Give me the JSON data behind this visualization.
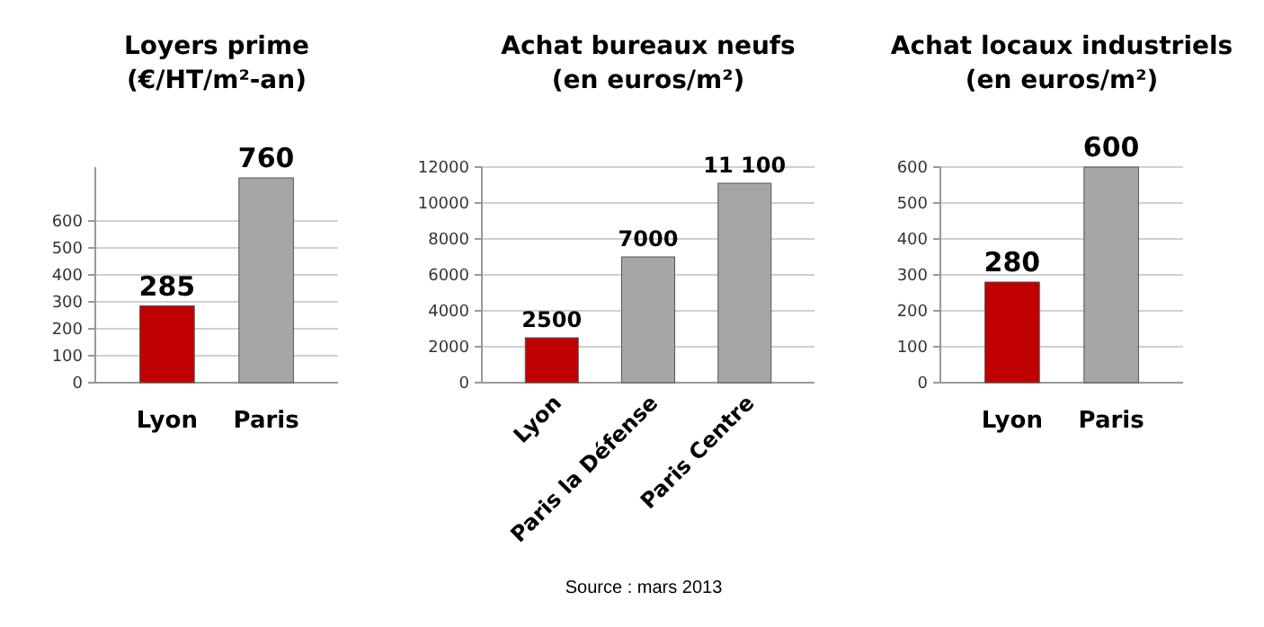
{
  "chart_data": [
    {
      "type": "bar",
      "title": "Loyers prime\n(€/HT/m²-an)",
      "categories": [
        "Lyon",
        "Paris"
      ],
      "values": [
        285,
        760
      ],
      "colors": [
        "#c00000",
        "#a6a6a6"
      ],
      "value_labels": [
        "285",
        "760"
      ],
      "ylim": [
        0,
        800
      ],
      "yticks": [
        0,
        100,
        200,
        300,
        400,
        500,
        600
      ],
      "grid": "y"
    },
    {
      "type": "bar",
      "title": "Achat bureaux neufs\n(en euros/m²)",
      "categories": [
        "Lyon",
        "Paris la Défense",
        "Paris Centre"
      ],
      "values": [
        2500,
        7000,
        11100
      ],
      "colors": [
        "#c00000",
        "#a6a6a6",
        "#a6a6a6"
      ],
      "value_labels": [
        "2500",
        "7000",
        "11 100"
      ],
      "ylim": [
        0,
        12000
      ],
      "yticks": [
        0,
        2000,
        4000,
        6000,
        8000,
        10000,
        12000
      ],
      "grid": "y",
      "annotations": [
        "Source : mars 2013"
      ]
    },
    {
      "type": "bar",
      "title": "Achat locaux industriels\n(en euros/m²)",
      "categories": [
        "Lyon",
        "Paris"
      ],
      "values": [
        280,
        600
      ],
      "colors": [
        "#c00000",
        "#a6a6a6"
      ],
      "value_labels": [
        "280",
        "600"
      ],
      "ylim": [
        0,
        600
      ],
      "yticks": [
        0,
        100,
        200,
        300,
        400,
        500,
        600
      ],
      "grid": "y"
    }
  ]
}
